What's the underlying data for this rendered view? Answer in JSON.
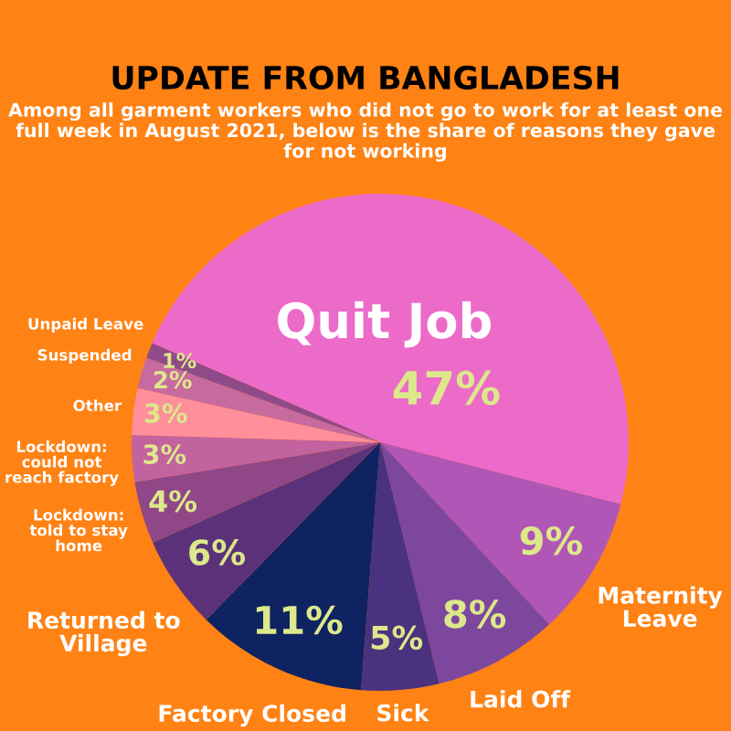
{
  "chart_data": {
    "type": "pie",
    "title": "UPDATE FROM BANGLADESH",
    "subtitle": "Among all garment workers who did not go to work for at least one full week in August 2021, below is the share of reasons they gave for not working",
    "categories": [
      "Quit Job",
      "Maternity\nLeave",
      "Laid Off",
      "Sick",
      "Factory Closed",
      "Returned to\nVillage",
      "Lockdown:\ntold to stay\nhome",
      "Lockdown:\ncould not\nreach factory",
      "Other",
      "Suspended",
      "Unpaid Leave"
    ],
    "values": [
      47,
      9,
      8,
      5,
      11,
      6,
      4,
      3,
      3,
      2,
      1
    ],
    "colors": [
      "#ec6bc9",
      "#b056b7",
      "#7d479e",
      "#4a327f",
      "#0f2262",
      "#5b327a",
      "#8f4788",
      "#c2629e",
      "#ff8f9a",
      "#c76b9f",
      "#8f4a89"
    ],
    "value_labels": [
      "47%",
      "9%",
      "8%",
      "5%",
      "11%",
      "6%",
      "4%",
      "3%",
      "3%",
      "2%",
      "1%"
    ]
  }
}
